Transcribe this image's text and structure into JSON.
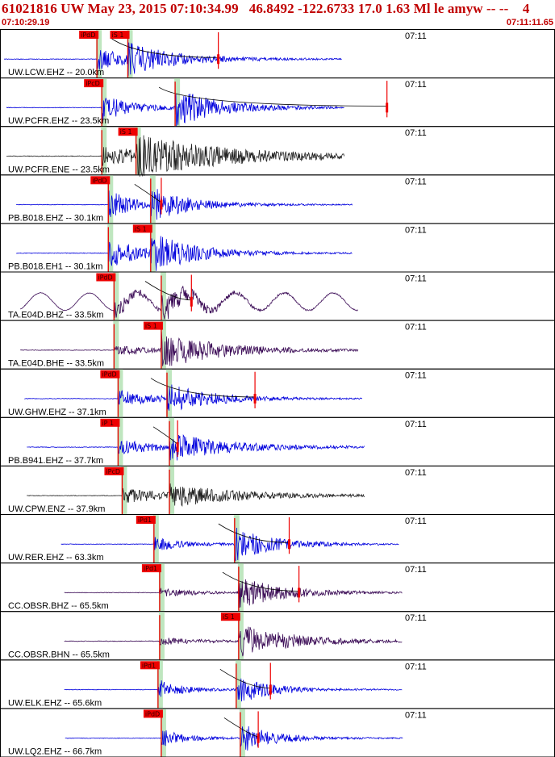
{
  "header": {
    "title": "61021816 UW May 23, 2015 07:10:34.99   46.8492 -122.6733 17.0 1.63 Ml le amyw -- --    4",
    "start_time": "07:10:29.19",
    "end_time": "07:11:11.65"
  },
  "colors": {
    "header_text": "#c00000",
    "blue_trace": "#0000dd",
    "dark_trace": "#222222",
    "purple_trace": "#3a0a55",
    "pick_flag": "#ee0000",
    "pick_window": "#bfe6bf",
    "panel_border": "#000000"
  },
  "chart_data": {
    "type": "seismogram",
    "time_marker_label": "07:11",
    "traces": [
      {
        "label": "UW.LCW.EHZ -- 20.0km",
        "color": "blue",
        "start_s": 0,
        "end_s": 41.5,
        "p_pick_s": 11.4,
        "p_label": "iPdD",
        "s_pick_s": 15.2,
        "s_label": "iS 1",
        "p_amp": 0.55,
        "s_amp": 0.6,
        "decay_s": 4.0,
        "extra_mark_s": 26.3
      },
      {
        "label": "UW.PCFR.EHZ -- 23.5km",
        "color": "blue",
        "start_s": 0.3,
        "end_s": 41.8,
        "p_pick_s": 12.0,
        "p_label": "iPcD",
        "s_pick_s": 21.0,
        "s_label": "",
        "p_amp": 0.65,
        "s_amp": 0.9,
        "decay_s": 3.5,
        "extra_mark_s": 47.0
      },
      {
        "label": "UW.PCFR.ENE -- 23.5km",
        "color": "dark",
        "start_s": 0.3,
        "end_s": 41.8,
        "p_pick_s": 12.0,
        "p_label": "",
        "s_pick_s": 16.2,
        "s_label": "iS 1",
        "p_amp": 0.45,
        "s_amp": 0.8,
        "decay_s": 8.0,
        "extra_mark_s": null
      },
      {
        "label": "PB.B018.EHZ -- 30.1km",
        "color": "blue",
        "start_s": 1.5,
        "end_s": 42.8,
        "p_pick_s": 12.8,
        "p_label": "iPdD",
        "s_pick_s": 18.0,
        "s_label": "",
        "p_amp": 0.7,
        "s_amp": 0.75,
        "decay_s": 3.0,
        "extra_mark_s": 19.3
      },
      {
        "label": "PB.B018.EH1 -- 30.1km",
        "color": "blue",
        "start_s": 1.5,
        "end_s": 42.8,
        "p_pick_s": 12.8,
        "p_label": "",
        "s_pick_s": 18.0,
        "s_label": "iS 1",
        "p_amp": 0.8,
        "s_amp": 0.85,
        "decay_s": 3.5,
        "extra_mark_s": null
      },
      {
        "label": "TA.E04D.BHZ -- 33.5km",
        "color": "purple",
        "start_s": 2.0,
        "end_s": 43.5,
        "p_pick_s": 13.5,
        "p_label": "iPdD",
        "s_pick_s": 19.3,
        "s_label": "",
        "p_amp": 0.5,
        "s_amp": 0.7,
        "decay_s": 2.5,
        "extra_mark_s": 23.0
      },
      {
        "label": "TA.E04D.BHE -- 33.5km",
        "color": "purple",
        "start_s": 2.0,
        "end_s": 43.5,
        "p_pick_s": 13.5,
        "p_label": "",
        "s_pick_s": 19.3,
        "s_label": "iS 1",
        "p_amp": 0.25,
        "s_amp": 0.85,
        "decay_s": 4.5,
        "extra_mark_s": null
      },
      {
        "label": "UW.GHW.EHZ -- 37.1km",
        "color": "blue",
        "start_s": 2.5,
        "end_s": 44.0,
        "p_pick_s": 14.0,
        "p_label": "iPdD",
        "s_pick_s": 20.0,
        "s_label": "",
        "p_amp": 0.45,
        "s_amp": 0.65,
        "decay_s": 3.5,
        "extra_mark_s": 30.8
      },
      {
        "label": "PB.B941.EHZ -- 37.7km",
        "color": "blue",
        "start_s": 2.8,
        "end_s": 44.3,
        "p_pick_s": 14.0,
        "p_label": "iP 1",
        "s_pick_s": 20.3,
        "s_label": "",
        "p_amp": 0.35,
        "s_amp": 0.6,
        "decay_s": 5.0,
        "extra_mark_s": 21.3
      },
      {
        "label": "UW.CPW.ENZ -- 37.9km",
        "color": "dark",
        "start_s": 2.8,
        "end_s": 44.3,
        "p_pick_s": 14.5,
        "p_label": "iPcD",
        "s_pick_s": 20.3,
        "s_label": "",
        "p_amp": 0.35,
        "s_amp": 0.45,
        "decay_s": 6.0,
        "extra_mark_s": null
      },
      {
        "label": "UW.RER.EHZ -- 63.3km",
        "color": "blue",
        "start_s": 7.0,
        "end_s": 48.5,
        "p_pick_s": 18.4,
        "p_label": "iPd1",
        "s_pick_s": 28.3,
        "s_label": "",
        "p_amp": 0.35,
        "s_amp": 0.8,
        "decay_s": 3.0,
        "extra_mark_s": 35.0
      },
      {
        "label": "CC.OBSR.BHZ -- 65.5km",
        "color": "purple",
        "start_s": 7.4,
        "end_s": 48.9,
        "p_pick_s": 19.1,
        "p_label": "iPd1",
        "s_pick_s": 28.8,
        "s_label": "",
        "p_amp": 0.2,
        "s_amp": 0.75,
        "decay_s": 3.5,
        "extra_mark_s": 36.2
      },
      {
        "label": "CC.OBSR.BHN -- 65.5km",
        "color": "purple",
        "start_s": 7.4,
        "end_s": 48.9,
        "p_pick_s": 19.1,
        "p_label": "",
        "s_pick_s": 28.8,
        "s_label": "iS 1",
        "p_amp": 0.15,
        "s_amp": 0.85,
        "decay_s": 4.0,
        "extra_mark_s": null
      },
      {
        "label": "UW.ELK.EHZ -- 65.6km",
        "color": "blue",
        "start_s": 7.4,
        "end_s": 48.9,
        "p_pick_s": 18.9,
        "p_label": "iPd1",
        "s_pick_s": 28.5,
        "s_label": "",
        "p_amp": 0.5,
        "s_amp": 0.7,
        "decay_s": 2.5,
        "extra_mark_s": 32.7
      },
      {
        "label": "UW.LQ2.EHZ -- 66.7km",
        "color": "blue",
        "start_s": 7.5,
        "end_s": 49.0,
        "p_pick_s": 19.3,
        "p_label": "iPdD",
        "s_pick_s": 29.0,
        "s_label": "",
        "p_amp": 0.45,
        "s_amp": 0.7,
        "decay_s": 2.5,
        "extra_mark_s": 31.2
      }
    ]
  }
}
